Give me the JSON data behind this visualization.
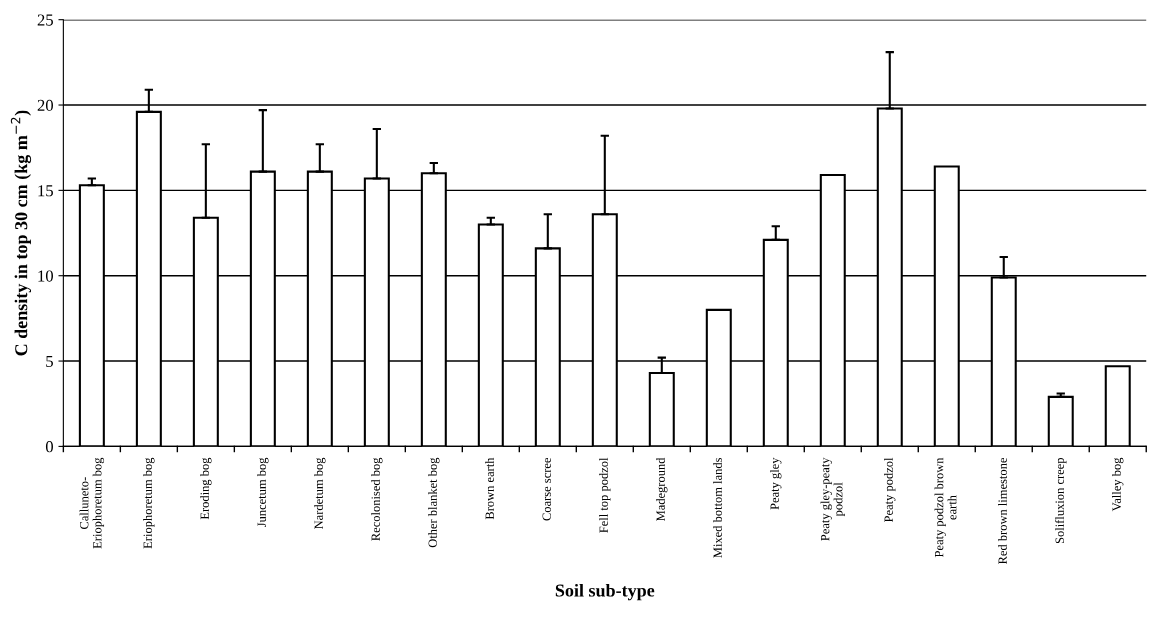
{
  "chart_data": {
    "type": "bar",
    "xlabel": "Soil sub-type",
    "ylabel": "C density in top 30 cm (kg m$^{−2}$)",
    "categories": [
      "Calluneto-\nEriophoretum bog",
      "Eriophoretum bog",
      "Eroding bog",
      "Juncetum bog",
      "Nardetum bog",
      "Recolonised bog",
      "Other blanket bog",
      "Brown earth",
      "Coarse scree",
      "Fell top podzol",
      "Madeground",
      "Mixed bottom lands",
      "Peaty gley",
      "Peaty gley-peaty\npodzol",
      "Peaty podzol",
      "Peaty podzol brown\nearth",
      "Red brown limestone",
      "Solifluxion creep",
      "Valley bog"
    ],
    "series": [
      {
        "color": "#ffffff",
        "values": [
          15.3,
          19.6,
          13.4,
          16.1,
          16.1,
          15.7,
          16.0,
          13.0,
          11.6,
          13.6,
          4.3,
          8.0,
          12.1,
          15.9,
          19.8,
          16.4,
          9.9,
          2.9,
          4.7
        ],
        "errors": [
          [
            15.3,
            15.7
          ],
          [
            19.6,
            20.9
          ],
          [
            13.4,
            17.7
          ],
          [
            16.1,
            19.7
          ],
          [
            16.1,
            17.7
          ],
          [
            15.7,
            18.6
          ],
          [
            16.0,
            16.6
          ],
          [
            13.0,
            13.4
          ],
          [
            11.6,
            13.6
          ],
          [
            13.6,
            18.2
          ],
          [
            4.3,
            5.2
          ],
          null,
          [
            12.1,
            12.9
          ],
          null,
          [
            19.8,
            23.1
          ],
          null,
          [
            9.9,
            11.1
          ],
          [
            2.9,
            3.1
          ],
          null
        ]
      }
    ],
    "ylim": [
      0,
      25
    ],
    "yticks": [
      0,
      5,
      10,
      15,
      20,
      25
    ],
    "grid": "y"
  }
}
